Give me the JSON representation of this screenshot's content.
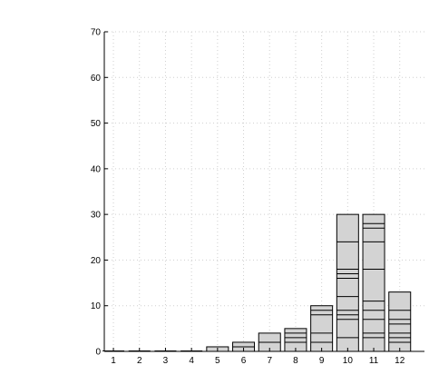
{
  "chart_data": {
    "type": "bar",
    "title": "",
    "xlabel": "",
    "ylabel": "",
    "categories": [
      "1",
      "2",
      "3",
      "4",
      "5",
      "6",
      "7",
      "8",
      "9",
      "10",
      "11",
      "12"
    ],
    "values": [
      0,
      0,
      0,
      0,
      1,
      2,
      4,
      5,
      10,
      30,
      30,
      13
    ],
    "segment_boundaries": [
      [],
      [],
      [],
      [],
      [],
      [
        1
      ],
      [
        2
      ],
      [
        2,
        3,
        4
      ],
      [
        2,
        4,
        8,
        9
      ],
      [
        3,
        7,
        8,
        9,
        12,
        16,
        17,
        18,
        24
      ],
      [
        3,
        4,
        7,
        9,
        11,
        18,
        24,
        27,
        28
      ],
      [
        2,
        3,
        4,
        6,
        7,
        9
      ]
    ],
    "ylim": [
      0,
      70
    ],
    "yticks": [
      0,
      10,
      20,
      30,
      40,
      50,
      60,
      70
    ],
    "grid": true,
    "bar_fill": "#d3d3d3",
    "bar_stroke": "#000000"
  }
}
